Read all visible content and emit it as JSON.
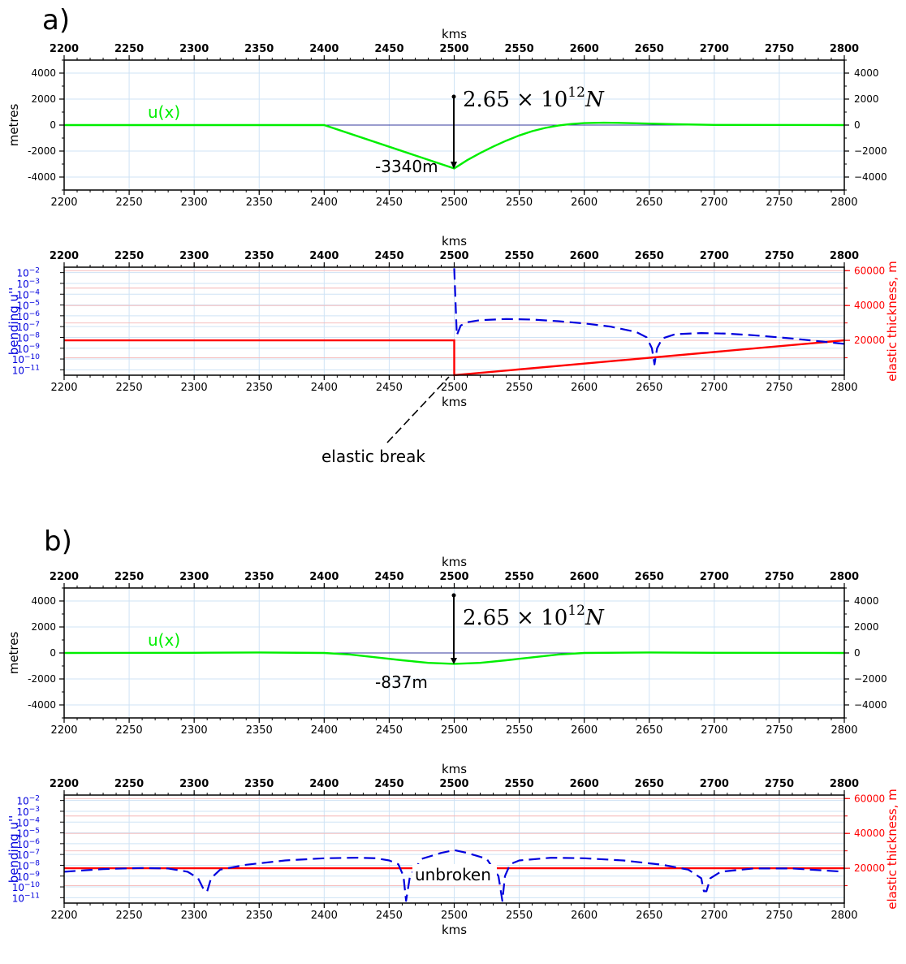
{
  "panels": [
    {
      "letter": "a)",
      "force_label": "2.65 × 10",
      "force_exp": "12",
      "force_unit": "N",
      "depth_label": "-3340m",
      "break_label": "elastic break"
    },
    {
      "letter": "b)",
      "force_label": "2.65 × 10",
      "force_exp": "12",
      "force_unit": "N",
      "depth_label": "-837m",
      "unbroken_label": "unbroken"
    }
  ],
  "colors": {
    "displacement": "#00ee00",
    "bending": "#0000dd",
    "thickness": "#ff0000",
    "grid": "#cfe3f5",
    "thickness_grid": "#f5b5b5"
  },
  "chart_data": [
    {
      "type": "line",
      "panel": "a",
      "xlabel": "kms",
      "ylabel": "metres",
      "xlim": [
        2200,
        2800
      ],
      "ylim": [
        -5000,
        5000
      ],
      "x_ticks": [
        2200,
        2250,
        2300,
        2350,
        2400,
        2450,
        2500,
        2550,
        2600,
        2650,
        2700,
        2750,
        2800
      ],
      "y_ticks": [
        -4000,
        -2000,
        0,
        2000,
        4000
      ],
      "y_ticklabels_right": [
        "−4000",
        "−2000",
        "0",
        "2000",
        "4000"
      ],
      "series": [
        {
          "name": "u(x)",
          "x": [
            2200,
            2400,
            2500,
            2510,
            2520,
            2530,
            2540,
            2550,
            2560,
            2570,
            2580,
            2590,
            2600,
            2615,
            2630,
            2650,
            2670,
            2700,
            2800
          ],
          "y": [
            0,
            0,
            -3340,
            -2700,
            -2150,
            -1650,
            -1200,
            -800,
            -470,
            -220,
            -40,
            80,
            150,
            180,
            160,
            110,
            60,
            10,
            0
          ]
        }
      ],
      "annotations": [
        {
          "text": "2.65 × 10^12 N",
          "x": 2500,
          "y": 2200
        },
        {
          "text": "-3340m",
          "x": 2500,
          "y": -3340
        }
      ]
    },
    {
      "type": "line",
      "panel": "a",
      "xlabel": "kms",
      "ylabel": "bending u''",
      "ylabel_right": "elastic thickness, m",
      "xlim": [
        2200,
        2800
      ],
      "ylim_log": [
        -11.5,
        -1.5
      ],
      "ylim_right": [
        0,
        62000
      ],
      "x_ticks": [
        2200,
        2250,
        2300,
        2350,
        2400,
        2450,
        2500,
        2550,
        2600,
        2650,
        2700,
        2750,
        2800
      ],
      "y_ticks": [
        "10^-2",
        "10^-3",
        "10^-4",
        "10^-5",
        "10^-6",
        "10^-7",
        "10^-8",
        "10^-9",
        "10^-10",
        "10^-11"
      ],
      "y_ticks_right": [
        20000,
        40000,
        60000
      ],
      "bending_log10": {
        "x": [
          2500,
          2502,
          2505,
          2510,
          2520,
          2540,
          2560,
          2580,
          2600,
          2620,
          2640,
          2648,
          2652,
          2654,
          2656,
          2660,
          2670,
          2690,
          2710,
          2730,
          2760,
          2800
        ],
        "y": [
          -1.6,
          -7.8,
          -6.9,
          -6.6,
          -6.4,
          -6.3,
          -6.35,
          -6.5,
          -6.7,
          -7.0,
          -7.5,
          -8.0,
          -9.0,
          -10.5,
          -9.0,
          -8.1,
          -7.7,
          -7.6,
          -7.65,
          -7.8,
          -8.1,
          -8.6
        ]
      },
      "elastic_thickness": {
        "x": [
          2200,
          2500,
          2500,
          2800
        ],
        "y": [
          20000,
          20000,
          0,
          20000
        ]
      },
      "annotations": [
        {
          "text": "elastic break",
          "x": 2500,
          "y": "10^-10"
        }
      ]
    },
    {
      "type": "line",
      "panel": "b",
      "xlabel": "kms",
      "ylabel": "metres",
      "xlim": [
        2200,
        2800
      ],
      "ylim": [
        -5000,
        5000
      ],
      "x_ticks": [
        2200,
        2250,
        2300,
        2350,
        2400,
        2450,
        2500,
        2550,
        2600,
        2650,
        2700,
        2750,
        2800
      ],
      "y_ticks": [
        -4000,
        -2000,
        0,
        2000,
        4000
      ],
      "series": [
        {
          "name": "u(x)",
          "x": [
            2200,
            2300,
            2350,
            2400,
            2420,
            2440,
            2460,
            2480,
            2500,
            2520,
            2540,
            2560,
            2580,
            2600,
            2650,
            2700,
            2800
          ],
          "y": [
            0,
            15,
            40,
            0,
            -120,
            -340,
            -560,
            -760,
            -837,
            -760,
            -560,
            -340,
            -120,
            0,
            40,
            15,
            0
          ]
        }
      ],
      "annotations": [
        {
          "text": "2.65 × 10^12 N",
          "x": 2500,
          "y": 4500
        },
        {
          "text": "-837m",
          "x": 2500,
          "y": -837
        }
      ]
    },
    {
      "type": "line",
      "panel": "b",
      "xlabel": "kms",
      "ylabel": "bending u''",
      "ylabel_right": "elastic thickness, m",
      "xlim": [
        2200,
        2800
      ],
      "ylim_log": [
        -11.5,
        -1.5
      ],
      "ylim_right": [
        0,
        62000
      ],
      "x_ticks": [
        2200,
        2250,
        2300,
        2350,
        2400,
        2450,
        2500,
        2550,
        2600,
        2650,
        2700,
        2750,
        2800
      ],
      "y_ticks": [
        "10^-2",
        "10^-3",
        "10^-4",
        "10^-5",
        "10^-6",
        "10^-7",
        "10^-8",
        "10^-9",
        "10^-10",
        "10^-11"
      ],
      "y_ticks_right": [
        20000,
        40000,
        60000
      ],
      "bending_log10": {
        "x": [
          2200,
          2230,
          2260,
          2280,
          2295,
          2303,
          2308,
          2310,
          2313,
          2320,
          2340,
          2370,
          2400,
          2425,
          2440,
          2450,
          2457,
          2461,
          2463,
          2466,
          2475,
          2490,
          2500,
          2510,
          2525,
          2534,
          2537,
          2539,
          2543,
          2550,
          2575,
          2600,
          2630,
          2660,
          2680,
          2690,
          2692,
          2694,
          2697,
          2705,
          2730,
          2760,
          2800
        ],
        "y": [
          -8.6,
          -8.35,
          -8.25,
          -8.3,
          -8.6,
          -9.2,
          -10.4,
          -10.4,
          -9.2,
          -8.4,
          -7.95,
          -7.55,
          -7.35,
          -7.3,
          -7.35,
          -7.55,
          -7.9,
          -9.0,
          -11.3,
          -9.0,
          -7.4,
          -6.85,
          -6.6,
          -6.85,
          -7.4,
          -9.0,
          -11.3,
          -9.0,
          -7.9,
          -7.55,
          -7.3,
          -7.35,
          -7.55,
          -7.95,
          -8.4,
          -9.2,
          -10.4,
          -10.4,
          -9.2,
          -8.6,
          -8.3,
          -8.3,
          -8.6
        ]
      },
      "elastic_thickness": {
        "x": [
          2200,
          2800
        ],
        "y": [
          20000,
          20000
        ]
      },
      "annotations": [
        {
          "text": "unbroken",
          "x": 2500,
          "y": "10^-9"
        }
      ]
    }
  ]
}
